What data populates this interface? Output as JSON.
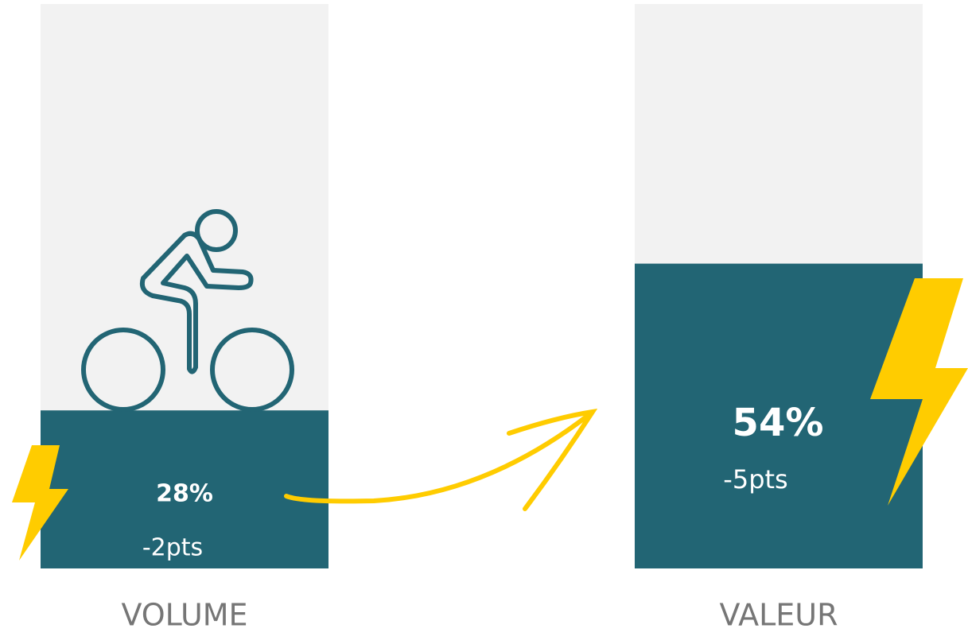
{
  "chart_data": {
    "type": "bar",
    "categories": [
      "VOLUME",
      "VALEUR"
    ],
    "values": [
      28,
      54
    ],
    "value_labels": [
      "28%",
      "54%"
    ],
    "change_labels": [
      "-2pts",
      "-5pts"
    ],
    "color": "#226574",
    "background_color": "#f2f2f2",
    "ylim": [
      0,
      100
    ]
  }
}
